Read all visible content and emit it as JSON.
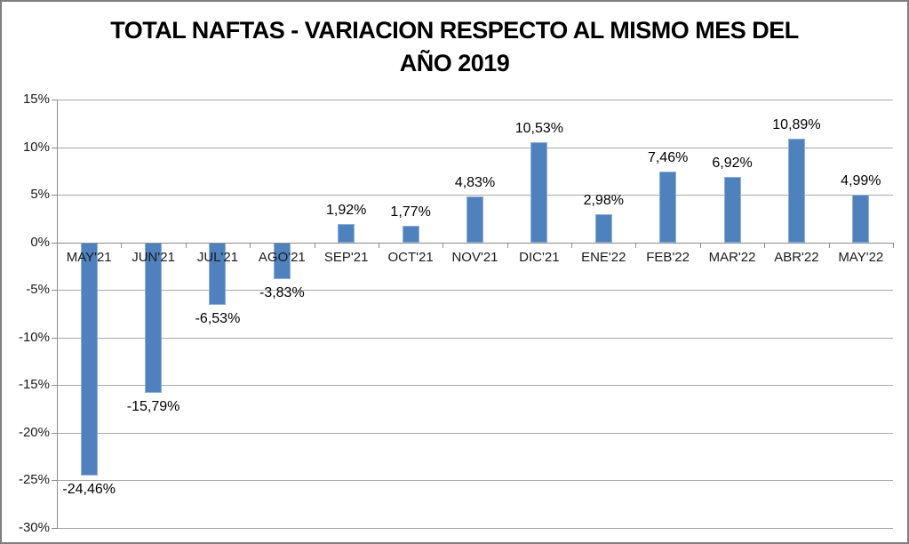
{
  "title": {
    "line1": "TOTAL NAFTAS - VARIACION RESPECTO AL MISMO MES DEL",
    "line2": "AÑO 2019"
  },
  "chart_data": {
    "type": "bar",
    "title": "TOTAL NAFTAS - VARIACION RESPECTO AL MISMO MES DEL AÑO 2019",
    "xlabel": "",
    "ylabel": "",
    "categories": [
      "MAY'21",
      "JUN'21",
      "JUL'21",
      "AGO'21",
      "SEP'21",
      "OCT'21",
      "NOV'21",
      "DIC'21",
      "ENE'22",
      "FEB'22",
      "MAR'22",
      "ABR'22",
      "MAY'22"
    ],
    "values": [
      -24.46,
      -15.79,
      -6.53,
      -3.83,
      1.92,
      1.77,
      4.83,
      10.53,
      2.98,
      7.46,
      6.92,
      10.89,
      4.99
    ],
    "value_labels": [
      "-24,46%",
      "-15,79%",
      "-6,53%",
      "-3,83%",
      "1,92%",
      "1,77%",
      "4,83%",
      "10,53%",
      "2,98%",
      "7,46%",
      "6,92%",
      "10,89%",
      "4,99%"
    ],
    "ylim": [
      -30,
      15
    ],
    "ytick_step": 5,
    "yticks": [
      15,
      10,
      5,
      0,
      -5,
      -10,
      -15,
      -20,
      -25,
      -30
    ],
    "ytick_labels": [
      "15%",
      "10%",
      "5%",
      "0%",
      "-5%",
      "-10%",
      "-15%",
      "-20%",
      "-25%",
      "-30%"
    ],
    "grid": true,
    "legend_position": "none",
    "colors": {
      "bar_fill": "#4F81BD",
      "bar_border": "#8DB0D9",
      "gridline": "#A8A8A8",
      "axis": "#8C8C8C",
      "text": "#000000",
      "frame_border": "#7F7F7F",
      "background": "#FFFFFF"
    }
  }
}
